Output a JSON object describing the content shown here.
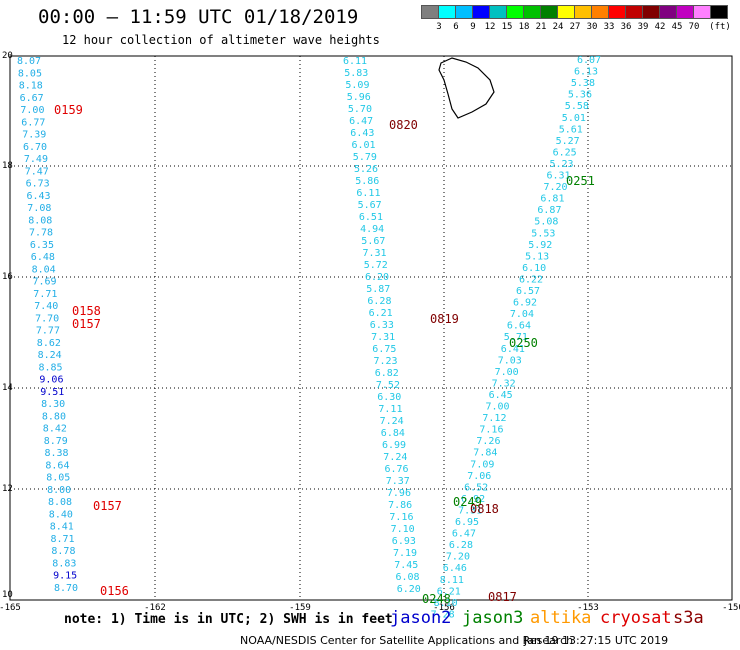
{
  "header": {
    "title": "00:00 – 11:59 UTC 01/18/2019",
    "subtitle": "12 hour collection of altimeter wave heights"
  },
  "legend": {
    "unit": "(ft)",
    "colors": [
      "#7f7f7f",
      "#00ffff",
      "#00bfff",
      "#0000ff",
      "#00c0c0",
      "#00ff00",
      "#00c000",
      "#008000",
      "#ffff00",
      "#ffbf00",
      "#ff8000",
      "#ff0000",
      "#c00000",
      "#800000",
      "#800080",
      "#c000c0",
      "#ff80ff",
      "#000000"
    ],
    "labels": [
      "3",
      "6",
      "9",
      "12",
      "15",
      "18",
      "21",
      "24",
      "27",
      "30",
      "33",
      "36",
      "39",
      "42",
      "45",
      "70"
    ]
  },
  "map": {
    "lat_ticks": [
      "20",
      "18",
      "16",
      "14",
      "12",
      "10"
    ],
    "lon_ticks": [
      "-165",
      "-162",
      "-159",
      "-156",
      "-153",
      "-150"
    ],
    "labels_cyan": [
      "6.11",
      "5.83",
      "5.09",
      "5.96",
      "5.70",
      "6.47",
      "6.43",
      "6.01",
      "5.79",
      "5.26",
      "5.86",
      "6.11",
      "5.67",
      "6.51",
      "4.94",
      "5.67",
      "7.31",
      "5.72",
      "6.20",
      "5.87",
      "6.28",
      "6.21",
      "6.33",
      "7.31",
      "6.75",
      "7.23",
      "6.82",
      "7.52",
      "6.30",
      "7.11",
      "7.24",
      "6.84",
      "6.99",
      "7.24",
      "6.76",
      "7.37",
      "7.96",
      "7.86",
      "7.16",
      "7.10",
      "6.93",
      "7.19",
      "7.45",
      "6.08",
      "6.20",
      "6.07",
      "6.13",
      "5.38",
      "5.36",
      "5.58",
      "5.01",
      "5.61",
      "5.27",
      "6.25",
      "5.23",
      "6.31",
      "7.20",
      "6.81",
      "6.87",
      "5.08",
      "5.53",
      "5.92",
      "5.13",
      "6.10",
      "6.22",
      "6.57",
      "6.92",
      "7.04",
      "6.64",
      "5.71",
      "6.41",
      "7.03",
      "7.00",
      "7.32",
      "6.45",
      "7.00",
      "7.12",
      "7.16",
      "7.26",
      "7.84",
      "7.09",
      "7.06",
      "6.52",
      "6.92",
      "7.31",
      "6.95",
      "6.47",
      "6.28",
      "7.20",
      "6.46",
      "8.11",
      "6.21",
      "8.10",
      "7.28"
    ],
    "labels_left": [
      "8.07",
      "8.05",
      "8.18",
      "6.67",
      "7.00",
      "6.77",
      "7.39",
      "6.70",
      "7.49",
      "7.47",
      "6.73",
      "6.43",
      "7.08",
      "8.08",
      "7.78",
      "6.35",
      "6.48",
      "8.04",
      "7.69",
      "7.71",
      "7.40",
      "7.70",
      "7.77",
      "8.62",
      "8.24",
      "8.85",
      "9.06",
      "9.51",
      "8.30",
      "8.80",
      "8.42",
      "8.79",
      "8.38",
      "8.64",
      "8.05",
      "8.00",
      "8.08",
      "8.40",
      "8.41",
      "8.71",
      "8.78",
      "8.83",
      "9.15",
      "8.70"
    ],
    "times": [
      "0159",
      "0820",
      "0251",
      "0158",
      "0157",
      "0819",
      "0250",
      "0249",
      "0818",
      "0157",
      "0248",
      "0817",
      "0156"
    ]
  },
  "footer": {
    "note": "note: 1) Time is in UTC; 2) SWH is in feet",
    "satellites": [
      {
        "name": "jason2",
        "color": "#0000cc"
      },
      {
        "name": "jason3",
        "color": "#008000"
      },
      {
        "name": "altika",
        "color": "#ff9900"
      },
      {
        "name": "cryosat",
        "color": "#dd0000"
      },
      {
        "name": "s3a",
        "color": "#8b0000"
      }
    ],
    "credit": "NOAA/NESDIS Center for Satellite Applications and Research",
    "timestamp": "Jan 19 13:27:15 UTC 2019"
  }
}
